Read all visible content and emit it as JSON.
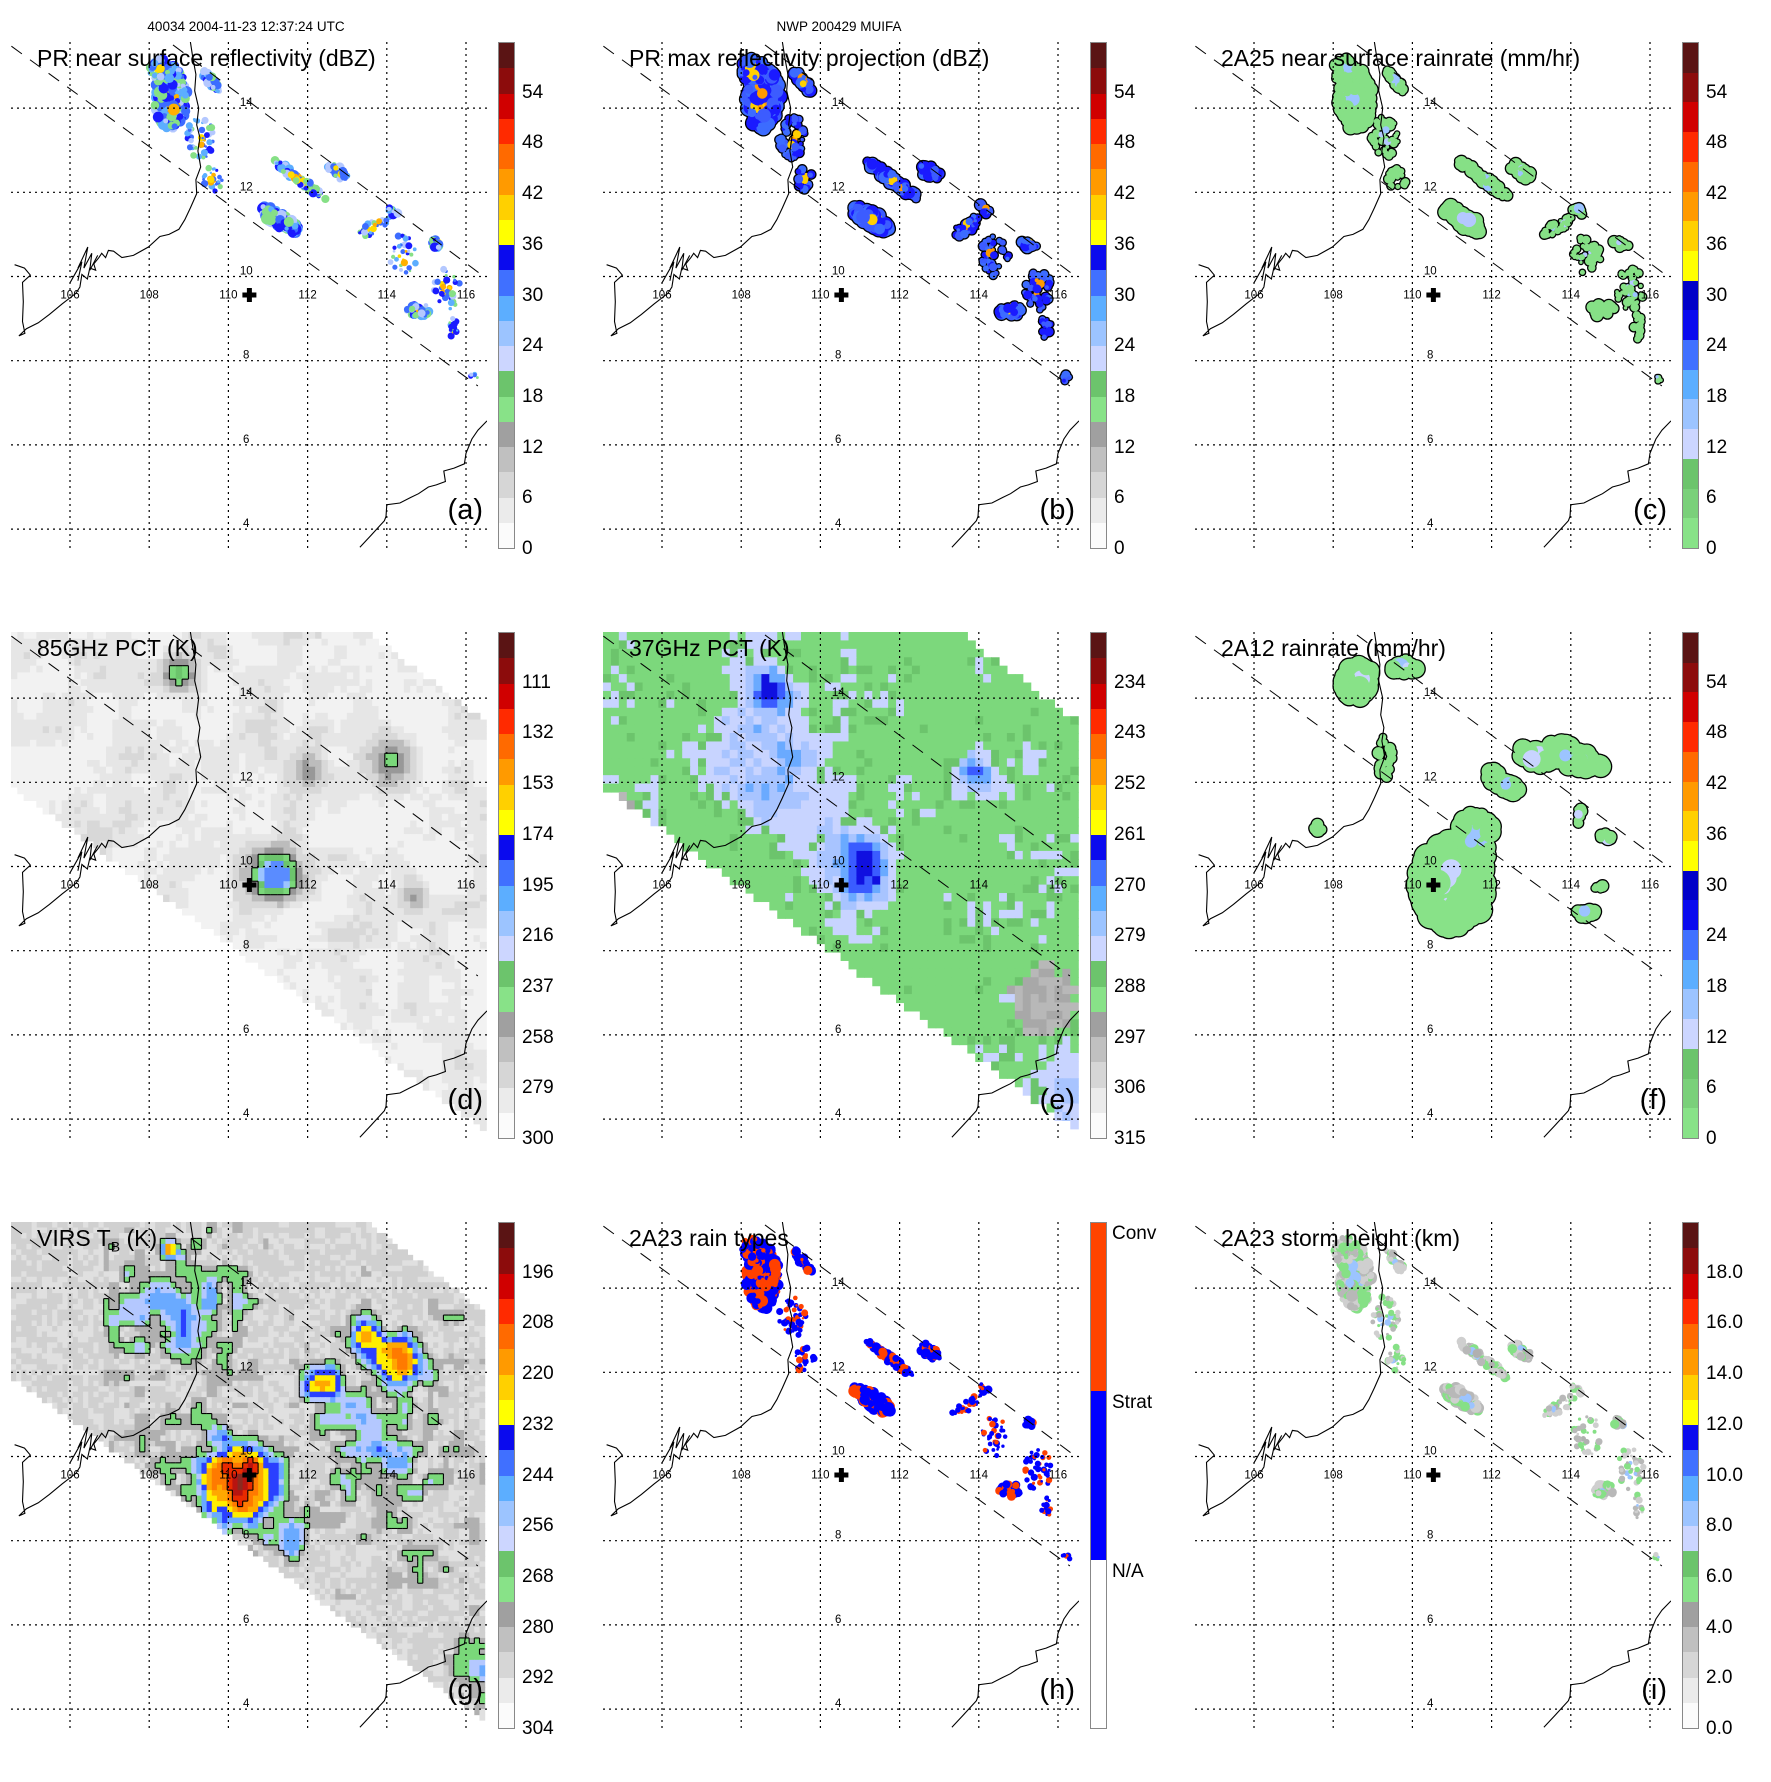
{
  "header": {
    "orbit_time": "40034 2004-11-23 12:37:24 UTC",
    "storm": "NWP 200429 MUIFA"
  },
  "axes": {
    "lon_labels": [
      "106",
      "108",
      "110",
      "112",
      "114",
      "116"
    ],
    "lat_labels": [
      "14",
      "12",
      "10",
      "8",
      "6",
      "4"
    ]
  },
  "panels": [
    {
      "id": "a",
      "title": "PR near surface reflectivity (dBZ)",
      "label": "(a)",
      "colorbar": {
        "labels": [
          "0",
          "6",
          "12",
          "18",
          "24",
          "30",
          "36",
          "42",
          "48",
          "54"
        ],
        "colors": [
          "#fbfbfb",
          "#ebebeb",
          "#d6d6d6",
          "#c0c0c0",
          "#a0a0a0",
          "#88e288",
          "#6cc46c",
          "#ccd6ff",
          "#9cc4ff",
          "#5caeff",
          "#4070ff",
          "#0a0aee",
          "#ffff00",
          "#ffd000",
          "#ff9a00",
          "#ff6a00",
          "#ff2a00",
          "#d00000",
          "#8c0c0c",
          "#5a1414"
        ]
      }
    },
    {
      "id": "b",
      "title": "PR max reflectivity projection (dBZ)",
      "label": "(b)",
      "colorbar": {
        "labels": [
          "0",
          "6",
          "12",
          "18",
          "24",
          "30",
          "36",
          "42",
          "48",
          "54"
        ],
        "colors": [
          "#fbfbfb",
          "#ebebeb",
          "#d6d6d6",
          "#c0c0c0",
          "#a0a0a0",
          "#88e288",
          "#6cc46c",
          "#ccd6ff",
          "#9cc4ff",
          "#5caeff",
          "#4070ff",
          "#0a0aee",
          "#ffff00",
          "#ffd000",
          "#ff9a00",
          "#ff6a00",
          "#ff2a00",
          "#d00000",
          "#8c0c0c",
          "#5a1414"
        ]
      }
    },
    {
      "id": "c",
      "title": "2A25 near surface rainrate (mm/hr)",
      "label": "(c)",
      "colorbar": {
        "labels": [
          "0",
          "6",
          "12",
          "18",
          "24",
          "30",
          "36",
          "42",
          "48",
          "54"
        ],
        "colors": [
          "#88e288",
          "#7ad07a",
          "#6cc46c",
          "#ccd6ff",
          "#9cc4ff",
          "#5caeff",
          "#4070ff",
          "#0a0aee",
          "#0000c8",
          "#ffff00",
          "#ffd000",
          "#ff9a00",
          "#ff6a00",
          "#ff2a00",
          "#d00000",
          "#8c0c0c",
          "#5a1414"
        ]
      }
    },
    {
      "id": "d",
      "title": "85GHz PCT (K)",
      "label": "(d)",
      "colorbar": {
        "labels": [
          "300",
          "279",
          "258",
          "237",
          "216",
          "195",
          "174",
          "153",
          "132",
          "111"
        ],
        "colors": [
          "#fbfbfb",
          "#ebebeb",
          "#d6d6d6",
          "#c0c0c0",
          "#a0a0a0",
          "#88e288",
          "#6cc46c",
          "#ccd6ff",
          "#9cc4ff",
          "#5caeff",
          "#4070ff",
          "#0a0aee",
          "#ffff00",
          "#ffd000",
          "#ff9a00",
          "#ff6a00",
          "#ff2a00",
          "#d00000",
          "#8c0c0c",
          "#5a1414"
        ]
      }
    },
    {
      "id": "e",
      "title": "37GHz PCT (K)",
      "label": "(e)",
      "colorbar": {
        "labels": [
          "315",
          "306",
          "297",
          "288",
          "279",
          "270",
          "261",
          "252",
          "243",
          "234"
        ],
        "colors": [
          "#fbfbfb",
          "#ebebeb",
          "#d6d6d6",
          "#c0c0c0",
          "#a0a0a0",
          "#88e288",
          "#6cc46c",
          "#ccd6ff",
          "#9cc4ff",
          "#5caeff",
          "#4070ff",
          "#0a0aee",
          "#ffff00",
          "#ffd000",
          "#ff9a00",
          "#ff6a00",
          "#ff2a00",
          "#d00000",
          "#8c0c0c",
          "#5a1414"
        ]
      }
    },
    {
      "id": "f",
      "title": "2A12 rainrate (mm/hr)",
      "label": "(f)",
      "colorbar": {
        "labels": [
          "0",
          "6",
          "12",
          "18",
          "24",
          "30",
          "36",
          "42",
          "48",
          "54"
        ],
        "colors": [
          "#88e288",
          "#7ad07a",
          "#6cc46c",
          "#ccd6ff",
          "#9cc4ff",
          "#5caeff",
          "#4070ff",
          "#0a0aee",
          "#0000c8",
          "#ffff00",
          "#ffd000",
          "#ff9a00",
          "#ff6a00",
          "#ff2a00",
          "#d00000",
          "#8c0c0c",
          "#5a1414"
        ]
      }
    },
    {
      "id": "g",
      "title": "VIRS T",
      "title_sub": "B",
      "title_end": " (K)",
      "label": "(g)",
      "colorbar": {
        "labels": [
          "304",
          "292",
          "280",
          "268",
          "256",
          "244",
          "232",
          "220",
          "208",
          "196"
        ],
        "colors": [
          "#fbfbfb",
          "#ebebeb",
          "#d6d6d6",
          "#c0c0c0",
          "#a0a0a0",
          "#88e288",
          "#6cc46c",
          "#ccd6ff",
          "#9cc4ff",
          "#5caeff",
          "#4070ff",
          "#0a0aee",
          "#ffff00",
          "#ffd000",
          "#ff9a00",
          "#ff6a00",
          "#ff2a00",
          "#d00000",
          "#8c0c0c",
          "#5a1414"
        ]
      }
    },
    {
      "id": "h",
      "title": "2A23 rain types",
      "label": "(h)",
      "colorbar": {
        "labels": [
          "N/A",
          "Strat",
          "Conv"
        ],
        "colors": [
          "#ffffff",
          "#0000ff",
          "#ff4400"
        ]
      }
    },
    {
      "id": "i",
      "title": "2A23 storm height (km)",
      "label": "(i)",
      "colorbar": {
        "labels": [
          "0.0",
          "2.0",
          "4.0",
          "6.0",
          "8.0",
          "10.0",
          "12.0",
          "14.0",
          "16.0",
          "18.0"
        ],
        "colors": [
          "#fbfbfb",
          "#ebebeb",
          "#d6d6d6",
          "#c0c0c0",
          "#a0a0a0",
          "#88e288",
          "#6cc46c",
          "#ccd6ff",
          "#9cc4ff",
          "#5caeff",
          "#4070ff",
          "#0a0aee",
          "#ffff00",
          "#ffd000",
          "#ff9a00",
          "#ff6a00",
          "#ff2a00",
          "#d00000",
          "#8c0c0c",
          "#5a1414"
        ]
      }
    }
  ]
}
